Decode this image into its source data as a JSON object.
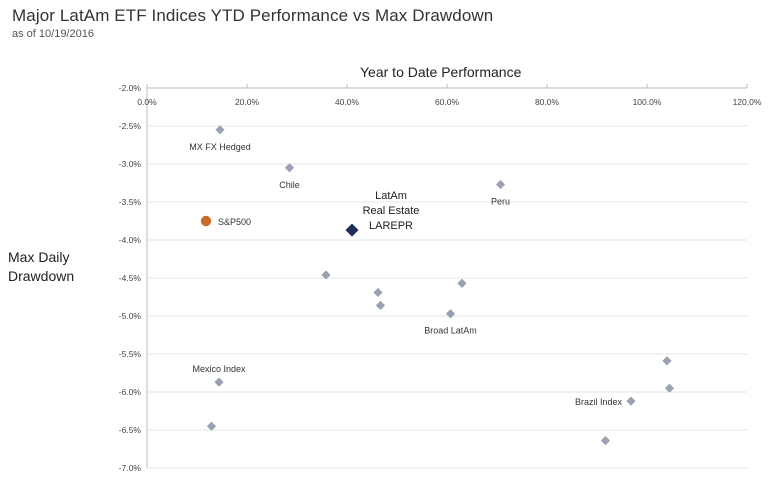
{
  "chart_data": {
    "type": "scatter",
    "title": "Major LatAm ETF Indices YTD Performance vs Max Drawdown",
    "subtitle": "as of 10/19/2016",
    "xlabel": "Year to Date Performance",
    "ylabel_lines": [
      "Max Daily",
      "Drawdown"
    ],
    "xlim": [
      0,
      120
    ],
    "ylim": [
      -7.0,
      -2.0
    ],
    "x_ticks": [
      0,
      20,
      40,
      60,
      80,
      100,
      120
    ],
    "x_tick_labels": [
      "0.0%",
      "20.0%",
      "40.0%",
      "60.0%",
      "80.0%",
      "100.0%",
      "120.0%"
    ],
    "y_ticks": [
      -2.0,
      -2.5,
      -3.0,
      -3.5,
      -4.0,
      -4.5,
      -5.0,
      -5.5,
      -6.0,
      -6.5,
      -7.0
    ],
    "y_tick_labels": [
      "-2.0%",
      "-2.5%",
      "-3.0%",
      "-3.5%",
      "-4.0%",
      "-4.5%",
      "-5.0%",
      "-5.5%",
      "-6.0%",
      "-6.5%",
      "-7.0%"
    ],
    "x_axis_position": "top",
    "grid": true,
    "colors": {
      "points": "#9aa1b0",
      "highlight": "#1f2d5c",
      "benchmark": "#c96a2b",
      "grid": "#e6e6e6"
    },
    "points": [
      {
        "x": 14.6,
        "y": -2.55,
        "label": "MX FX Hedged",
        "marker": "diamond",
        "kind": "etf",
        "label_pos": "below"
      },
      {
        "x": 28.5,
        "y": -3.05,
        "label": "Chile",
        "marker": "diamond",
        "kind": "etf",
        "label_pos": "below"
      },
      {
        "x": 70.7,
        "y": -3.27,
        "label": "Peru",
        "marker": "diamond",
        "kind": "etf",
        "label_pos": "below"
      },
      {
        "x": 11.8,
        "y": -3.75,
        "label": "S&P500",
        "marker": "circle",
        "kind": "benchmark",
        "label_pos": "right"
      },
      {
        "x": 41.0,
        "y": -3.87,
        "label": "LatAm Real Estate LAREPR",
        "label_lines": [
          "LatAm",
          "Real Estate",
          "LAREPR"
        ],
        "marker": "diamond",
        "kind": "highlight",
        "label_pos": "above-right"
      },
      {
        "x": 35.8,
        "y": -4.46,
        "label": "",
        "marker": "diamond",
        "kind": "etf"
      },
      {
        "x": 46.2,
        "y": -4.69,
        "label": "",
        "marker": "diamond",
        "kind": "etf"
      },
      {
        "x": 46.7,
        "y": -4.86,
        "label": "",
        "marker": "diamond",
        "kind": "etf"
      },
      {
        "x": 63.0,
        "y": -4.57,
        "label": "",
        "marker": "diamond",
        "kind": "etf"
      },
      {
        "x": 60.7,
        "y": -4.97,
        "label": "Broad LatAm",
        "marker": "diamond",
        "kind": "etf",
        "label_pos": "below"
      },
      {
        "x": 104.0,
        "y": -5.59,
        "label": "",
        "marker": "diamond",
        "kind": "etf"
      },
      {
        "x": 14.4,
        "y": -5.87,
        "label": "Mexico Index",
        "marker": "diamond",
        "kind": "etf",
        "label_pos": "above"
      },
      {
        "x": 104.5,
        "y": -5.95,
        "label": "",
        "marker": "diamond",
        "kind": "etf"
      },
      {
        "x": 96.8,
        "y": -6.12,
        "label": "Brazil Index",
        "marker": "diamond",
        "kind": "etf",
        "label_pos": "left"
      },
      {
        "x": 12.9,
        "y": -6.45,
        "label": "",
        "marker": "diamond",
        "kind": "etf"
      },
      {
        "x": 91.7,
        "y": -6.64,
        "label": "",
        "marker": "diamond",
        "kind": "etf"
      }
    ]
  }
}
